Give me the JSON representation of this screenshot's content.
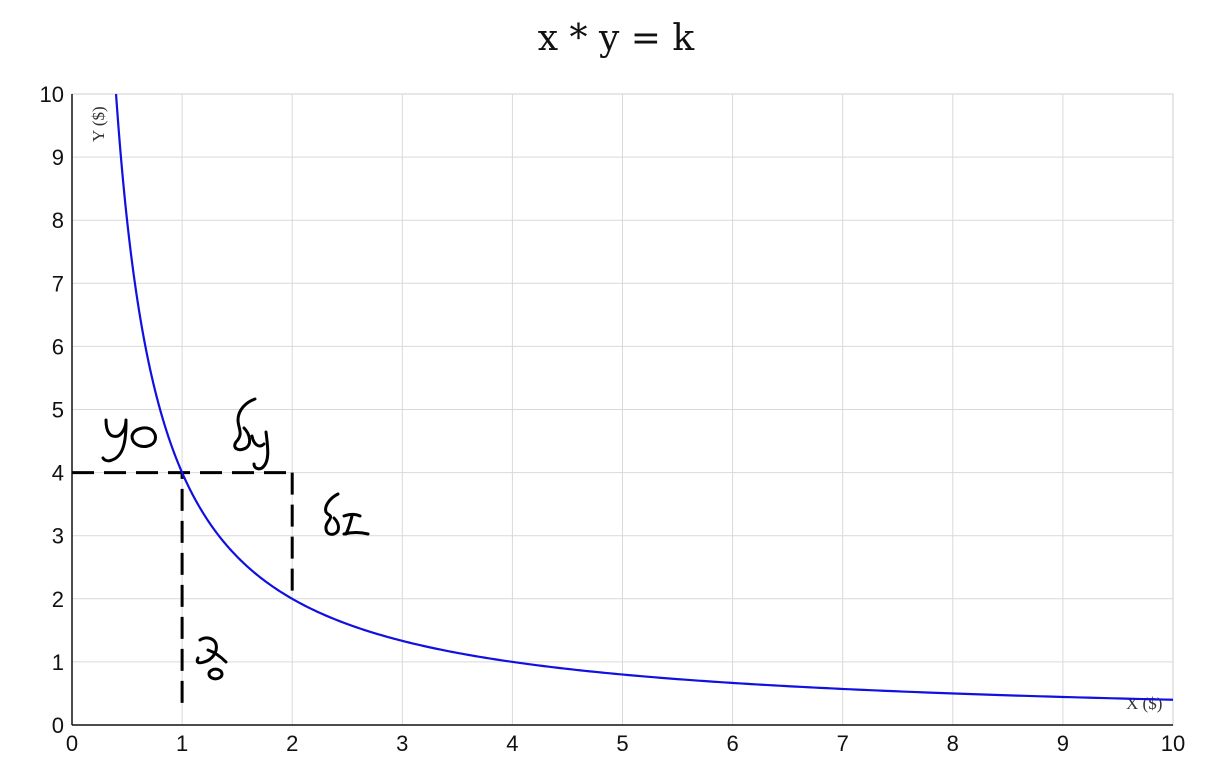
{
  "chart_data": {
    "type": "line",
    "title": "x * y = k",
    "xlabel": "X ($)",
    "ylabel": "Y ($)",
    "xlim": [
      0,
      10
    ],
    "ylim": [
      0,
      10
    ],
    "x_ticks": [
      "0",
      "1",
      "2",
      "3",
      "4",
      "5",
      "6",
      "7",
      "8",
      "9",
      "10"
    ],
    "y_ticks": [
      "0",
      "1",
      "2",
      "3",
      "4",
      "5",
      "6",
      "7",
      "8",
      "9",
      "10"
    ],
    "grid": true,
    "series": [
      {
        "color": "#1010e0",
        "k": 4,
        "x": [
          0.4,
          0.5,
          0.6,
          0.8,
          1,
          1.25,
          1.5,
          2,
          2.5,
          3,
          4,
          5,
          6,
          7,
          8,
          9,
          10
        ],
        "y": [
          10,
          8,
          6.67,
          5,
          4,
          3.2,
          2.67,
          2,
          1.6,
          1.33,
          1,
          0.8,
          0.67,
          0.57,
          0.5,
          0.44,
          0.4
        ]
      }
    ],
    "annotations": [
      {
        "type": "dashed-line",
        "from": [
          0,
          4
        ],
        "to": [
          2,
          4
        ]
      },
      {
        "type": "dashed-line",
        "from": [
          1,
          0.35
        ],
        "to": [
          1,
          4
        ]
      },
      {
        "type": "dashed-line",
        "from": [
          2,
          4
        ],
        "to": [
          2,
          2
        ]
      },
      {
        "type": "handwritten",
        "text": "y0"
      },
      {
        "type": "handwritten",
        "text": "δy"
      },
      {
        "type": "handwritten",
        "text": "δx"
      },
      {
        "type": "handwritten",
        "text": "x0"
      }
    ]
  }
}
